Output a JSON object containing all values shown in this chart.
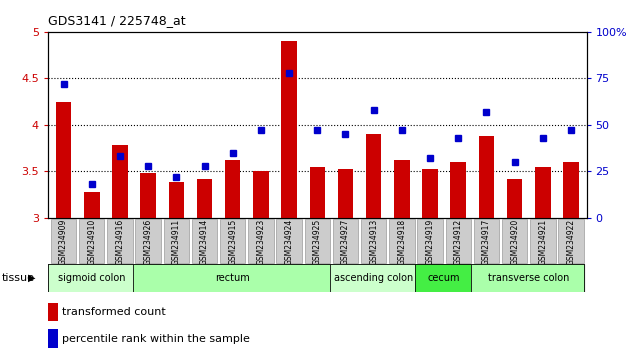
{
  "title": "GDS3141 / 225748_at",
  "samples": [
    "GSM234909",
    "GSM234910",
    "GSM234916",
    "GSM234926",
    "GSM234911",
    "GSM234914",
    "GSM234915",
    "GSM234923",
    "GSM234924",
    "GSM234925",
    "GSM234927",
    "GSM234913",
    "GSM234918",
    "GSM234919",
    "GSM234912",
    "GSM234917",
    "GSM234920",
    "GSM234921",
    "GSM234922"
  ],
  "bar_values": [
    4.25,
    3.28,
    3.78,
    3.48,
    3.38,
    3.42,
    3.62,
    3.5,
    4.9,
    3.55,
    3.52,
    3.9,
    3.62,
    3.52,
    3.6,
    3.88,
    3.42,
    3.55,
    3.6
  ],
  "dot_values": [
    72,
    18,
    33,
    28,
    22,
    28,
    35,
    47,
    78,
    47,
    45,
    58,
    47,
    32,
    43,
    57,
    30,
    43,
    47
  ],
  "bar_color": "#cc0000",
  "dot_color": "#0000cc",
  "ylim_left": [
    3.0,
    5.0
  ],
  "ylim_right": [
    0,
    100
  ],
  "yticks_left": [
    3.0,
    3.5,
    4.0,
    4.5,
    5.0
  ],
  "yticks_right": [
    0,
    25,
    50,
    75,
    100
  ],
  "ytick_labels_right": [
    "0",
    "25",
    "50",
    "75",
    "100%"
  ],
  "hlines": [
    3.5,
    4.0,
    4.5
  ],
  "tissue_groups": [
    {
      "label": "sigmoid colon",
      "start": 0,
      "end": 3,
      "color": "#ccffcc"
    },
    {
      "label": "rectum",
      "start": 3,
      "end": 10,
      "color": "#aaffaa"
    },
    {
      "label": "ascending colon",
      "start": 10,
      "end": 13,
      "color": "#ccffcc"
    },
    {
      "label": "cecum",
      "start": 13,
      "end": 15,
      "color": "#44ee44"
    },
    {
      "label": "transverse colon",
      "start": 15,
      "end": 19,
      "color": "#aaffaa"
    }
  ],
  "legend_items": [
    {
      "label": "transformed count",
      "color": "#cc0000"
    },
    {
      "label": "percentile rank within the sample",
      "color": "#0000cc"
    }
  ],
  "tissue_label": "tissue",
  "background_color": "#ffffff",
  "tick_area_color": "#cccccc"
}
